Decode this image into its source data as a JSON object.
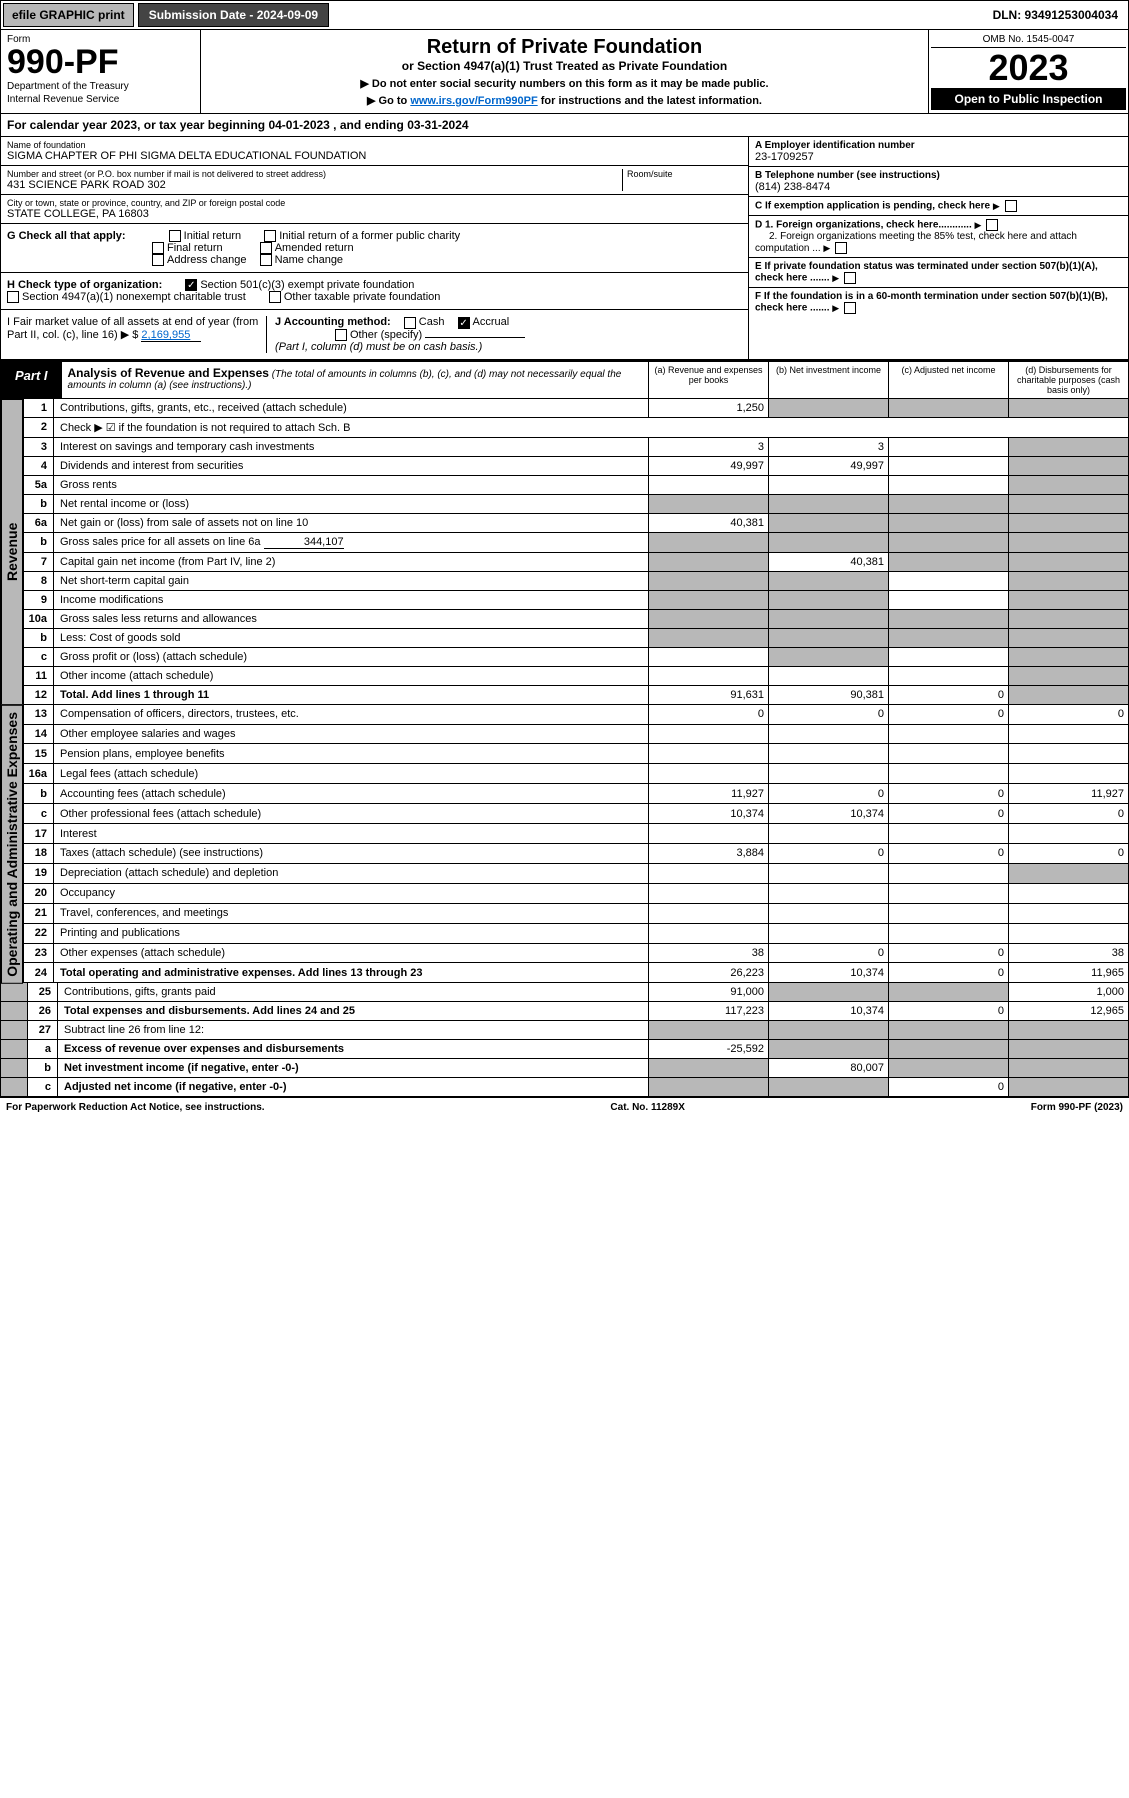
{
  "topbar": {
    "efile": "efile GRAPHIC print",
    "submission": "Submission Date - 2024-09-09",
    "dln": "DLN: 93491253004034"
  },
  "header": {
    "form_label": "Form",
    "form_num": "990-PF",
    "dept1": "Department of the Treasury",
    "dept2": "Internal Revenue Service",
    "title": "Return of Private Foundation",
    "subtitle": "or Section 4947(a)(1) Trust Treated as Private Foundation",
    "note1": "▶ Do not enter social security numbers on this form as it may be made public.",
    "note2_pre": "▶ Go to ",
    "note2_link": "www.irs.gov/Form990PF",
    "note2_post": " for instructions and the latest information.",
    "omb": "OMB No. 1545-0047",
    "year": "2023",
    "open": "Open to Public Inspection"
  },
  "calyear": {
    "pre": "For calendar year 2023, or tax year beginning ",
    "begin": "04-01-2023",
    "mid": " , and ending ",
    "end": "03-31-2024"
  },
  "org": {
    "name_label": "Name of foundation",
    "name": "SIGMA CHAPTER OF PHI SIGMA DELTA EDUCATIONAL FOUNDATION",
    "addr_label": "Number and street (or P.O. box number if mail is not delivered to street address)",
    "addr": "431 SCIENCE PARK ROAD 302",
    "room_label": "Room/suite",
    "city_label": "City or town, state or province, country, and ZIP or foreign postal code",
    "city": "STATE COLLEGE, PA  16803",
    "ein_label": "A Employer identification number",
    "ein": "23-1709257",
    "tel_label": "B Telephone number (see instructions)",
    "tel": "(814) 238-8474",
    "c": "C If exemption application is pending, check here",
    "d1": "D 1. Foreign organizations, check here............",
    "d2": "2. Foreign organizations meeting the 85% test, check here and attach computation ...",
    "e": "E  If private foundation status was terminated under section 507(b)(1)(A), check here .......",
    "f": "F  If the foundation is in a 60-month termination under section 507(b)(1)(B), check here .......",
    "g_label": "G Check all that apply:",
    "g_opts": [
      "Initial return",
      "Initial return of a former public charity",
      "Final return",
      "Amended return",
      "Address change",
      "Name change"
    ],
    "h_label": "H Check type of organization:",
    "h_opts": [
      "Section 501(c)(3) exempt private foundation",
      "Section 4947(a)(1) nonexempt charitable trust",
      "Other taxable private foundation"
    ],
    "i_label": "I Fair market value of all assets at end of year (from Part II, col. (c), line 16) ▶ $",
    "i_val": "2,169,955",
    "j_label": "J Accounting method:",
    "j_opts": [
      "Cash",
      "Accrual"
    ],
    "j_other": "Other (specify)",
    "j_note": "(Part I, column (d) must be on cash basis.)"
  },
  "part1": {
    "label": "Part I",
    "title": "Analysis of Revenue and Expenses",
    "note": "(The total of amounts in columns (b), (c), and (d) may not necessarily equal the amounts in column (a) (see instructions).)",
    "cols": {
      "a": "(a) Revenue and expenses per books",
      "b": "(b) Net investment income",
      "c": "(c) Adjusted net income",
      "d": "(d) Disbursements for charitable purposes (cash basis only)"
    }
  },
  "sections": {
    "revenue": "Revenue",
    "opexp": "Operating and Administrative Expenses"
  },
  "rows": [
    {
      "n": "1",
      "d": "Contributions, gifts, grants, etc., received (attach schedule)",
      "a": "1,250",
      "b": "",
      "c": "",
      "dd": "",
      "sb": true,
      "sc": true,
      "sd": true
    },
    {
      "n": "2",
      "d": "Check ▶ ☑ if the foundation is not required to attach Sch. B",
      "span": true
    },
    {
      "n": "3",
      "d": "Interest on savings and temporary cash investments",
      "a": "3",
      "b": "3",
      "c": "",
      "dd": "",
      "sd": true
    },
    {
      "n": "4",
      "d": "Dividends and interest from securities",
      "a": "49,997",
      "b": "49,997",
      "c": "",
      "dd": "",
      "sd": true
    },
    {
      "n": "5a",
      "d": "Gross rents",
      "a": "",
      "b": "",
      "c": "",
      "dd": "",
      "sd": true
    },
    {
      "n": "b",
      "d": "Net rental income or (loss)",
      "inset": true,
      "sa": true,
      "sb": true,
      "sc": true,
      "sd": true
    },
    {
      "n": "6a",
      "d": "Net gain or (loss) from sale of assets not on line 10",
      "a": "40,381",
      "b": "",
      "c": "",
      "dd": "",
      "sb": true,
      "sc": true,
      "sd": true
    },
    {
      "n": "b",
      "d": "Gross sales price for all assets on line 6a",
      "inset": "344,107",
      "sa": true,
      "sb": true,
      "sc": true,
      "sd": true
    },
    {
      "n": "7",
      "d": "Capital gain net income (from Part IV, line 2)",
      "a": "",
      "b": "40,381",
      "c": "",
      "dd": "",
      "sa": true,
      "sc": true,
      "sd": true
    },
    {
      "n": "8",
      "d": "Net short-term capital gain",
      "a": "",
      "b": "",
      "c": "",
      "dd": "",
      "sa": true,
      "sb": true,
      "sd": true
    },
    {
      "n": "9",
      "d": "Income modifications",
      "a": "",
      "b": "",
      "c": "",
      "dd": "",
      "sa": true,
      "sb": true,
      "sd": true
    },
    {
      "n": "10a",
      "d": "Gross sales less returns and allowances",
      "inset": true,
      "sa": true,
      "sb": true,
      "sc": true,
      "sd": true
    },
    {
      "n": "b",
      "d": "Less: Cost of goods sold",
      "inset": true,
      "sa": true,
      "sb": true,
      "sc": true,
      "sd": true
    },
    {
      "n": "c",
      "d": "Gross profit or (loss) (attach schedule)",
      "a": "",
      "b": "",
      "c": "",
      "dd": "",
      "sb": true,
      "sd": true
    },
    {
      "n": "11",
      "d": "Other income (attach schedule)",
      "a": "",
      "b": "",
      "c": "",
      "dd": "",
      "sd": true
    },
    {
      "n": "12",
      "d": "Total. Add lines 1 through 11",
      "a": "91,631",
      "b": "90,381",
      "c": "0",
      "dd": "",
      "bold": true,
      "sd": true
    },
    {
      "n": "13",
      "d": "Compensation of officers, directors, trustees, etc.",
      "a": "0",
      "b": "0",
      "c": "0",
      "dd": "0"
    },
    {
      "n": "14",
      "d": "Other employee salaries and wages",
      "a": "",
      "b": "",
      "c": "",
      "dd": ""
    },
    {
      "n": "15",
      "d": "Pension plans, employee benefits",
      "a": "",
      "b": "",
      "c": "",
      "dd": ""
    },
    {
      "n": "16a",
      "d": "Legal fees (attach schedule)",
      "a": "",
      "b": "",
      "c": "",
      "dd": ""
    },
    {
      "n": "b",
      "d": "Accounting fees (attach schedule)",
      "a": "11,927",
      "b": "0",
      "c": "0",
      "dd": "11,927"
    },
    {
      "n": "c",
      "d": "Other professional fees (attach schedule)",
      "a": "10,374",
      "b": "10,374",
      "c": "0",
      "dd": "0"
    },
    {
      "n": "17",
      "d": "Interest",
      "a": "",
      "b": "",
      "c": "",
      "dd": ""
    },
    {
      "n": "18",
      "d": "Taxes (attach schedule) (see instructions)",
      "a": "3,884",
      "b": "0",
      "c": "0",
      "dd": "0"
    },
    {
      "n": "19",
      "d": "Depreciation (attach schedule) and depletion",
      "a": "",
      "b": "",
      "c": "",
      "dd": "",
      "sd": true
    },
    {
      "n": "20",
      "d": "Occupancy",
      "a": "",
      "b": "",
      "c": "",
      "dd": ""
    },
    {
      "n": "21",
      "d": "Travel, conferences, and meetings",
      "a": "",
      "b": "",
      "c": "",
      "dd": ""
    },
    {
      "n": "22",
      "d": "Printing and publications",
      "a": "",
      "b": "",
      "c": "",
      "dd": ""
    },
    {
      "n": "23",
      "d": "Other expenses (attach schedule)",
      "a": "38",
      "b": "0",
      "c": "0",
      "dd": "38"
    },
    {
      "n": "24",
      "d": "Total operating and administrative expenses. Add lines 13 through 23",
      "a": "26,223",
      "b": "10,374",
      "c": "0",
      "dd": "11,965",
      "bold": true
    },
    {
      "n": "25",
      "d": "Contributions, gifts, grants paid",
      "a": "91,000",
      "b": "",
      "c": "",
      "dd": "1,000",
      "sb": true,
      "sc": true
    },
    {
      "n": "26",
      "d": "Total expenses and disbursements. Add lines 24 and 25",
      "a": "117,223",
      "b": "10,374",
      "c": "0",
      "dd": "12,965",
      "bold": true
    },
    {
      "n": "27",
      "d": "Subtract line 26 from line 12:",
      "sa": true,
      "sb": true,
      "sc": true,
      "sd": true
    },
    {
      "n": "a",
      "d": "Excess of revenue over expenses and disbursements",
      "a": "-25,592",
      "b": "",
      "c": "",
      "dd": "",
      "bold": true,
      "sb": true,
      "sc": true,
      "sd": true
    },
    {
      "n": "b",
      "d": "Net investment income (if negative, enter -0-)",
      "a": "",
      "b": "80,007",
      "c": "",
      "dd": "",
      "bold": true,
      "sa": true,
      "sc": true,
      "sd": true
    },
    {
      "n": "c",
      "d": "Adjusted net income (if negative, enter -0-)",
      "a": "",
      "b": "",
      "c": "0",
      "dd": "",
      "bold": true,
      "sa": true,
      "sb": true,
      "sd": true
    }
  ],
  "footer": {
    "left": "For Paperwork Reduction Act Notice, see instructions.",
    "mid": "Cat. No. 11289X",
    "right": "Form 990-PF (2023)"
  }
}
